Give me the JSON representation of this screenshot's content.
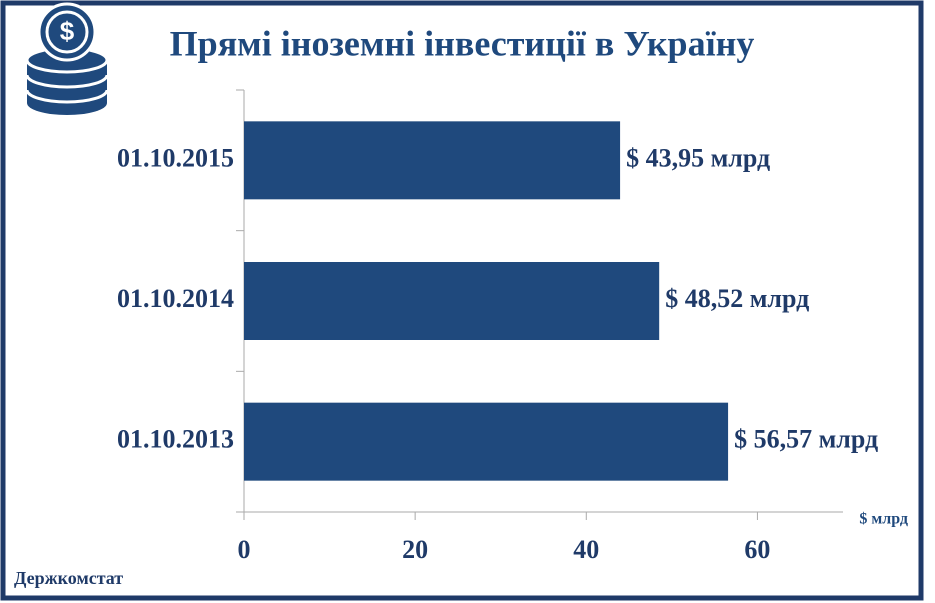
{
  "chart_data": {
    "type": "bar",
    "orientation": "horizontal",
    "title": "Прямі іноземні інвестиції в Україну",
    "categories": [
      "01.10.2015",
      "01.10.2014",
      "01.10.2013"
    ],
    "values": [
      43.95,
      48.52,
      56.57
    ],
    "value_labels": [
      "$ 43,95 млрд",
      "$ 48,52 млрд",
      "$ 56,57 млрд"
    ],
    "color": "#1f497d",
    "xlim": [
      0,
      70
    ],
    "xticks": [
      0,
      20,
      40,
      60
    ],
    "x_axis_label": "$ млрд",
    "source": "Держкомстат"
  }
}
